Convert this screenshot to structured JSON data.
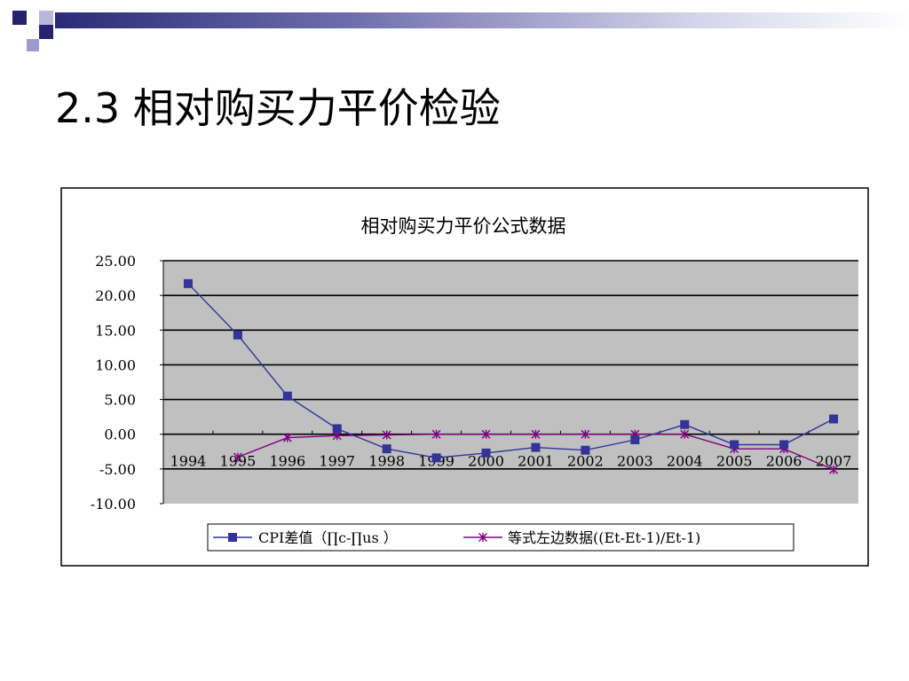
{
  "slide": {
    "title": "2.3 相对购买力平价检验"
  },
  "colors": {
    "deco_navy": "#24246e",
    "deco_light": "#9c9ccc",
    "plot_bg": "#c0c0c0",
    "series_cpi": "#333399",
    "series_equation": "#800080"
  },
  "chart_data": {
    "type": "line",
    "title": "相对购买力平价公式数据",
    "categories": [
      "1994",
      "1995",
      "1996",
      "1997",
      "1998",
      "1999",
      "2000",
      "2001",
      "2002",
      "2003",
      "2004",
      "2005",
      "2006",
      "2007"
    ],
    "ylim": [
      -10,
      25
    ],
    "yticks": [
      25,
      20,
      15,
      10,
      5,
      0,
      -5,
      -10
    ],
    "ytick_labels": [
      "25.00",
      "20.00",
      "15.00",
      "10.00",
      "5.00",
      "0.00",
      "-5.00",
      "-10.00"
    ],
    "grid": true,
    "legend_position": "bottom",
    "series": [
      {
        "name": "CPI差值（∏c-∏us ）",
        "marker": "square",
        "color": "#333399",
        "values": [
          21.7,
          14.3,
          5.5,
          0.8,
          -2.1,
          -3.4,
          -2.7,
          -1.9,
          -2.3,
          -0.8,
          1.4,
          -1.5,
          -1.5,
          2.2
        ]
      },
      {
        "name": "等式左边数据((Et-Et-1)/Et-1)",
        "marker": "star",
        "color": "#800080",
        "values": [
          null,
          -3.3,
          -0.5,
          -0.2,
          -0.1,
          0.0,
          0.0,
          0.0,
          0.0,
          0.0,
          0.0,
          -2.1,
          -2.1,
          -5.1
        ]
      }
    ]
  }
}
